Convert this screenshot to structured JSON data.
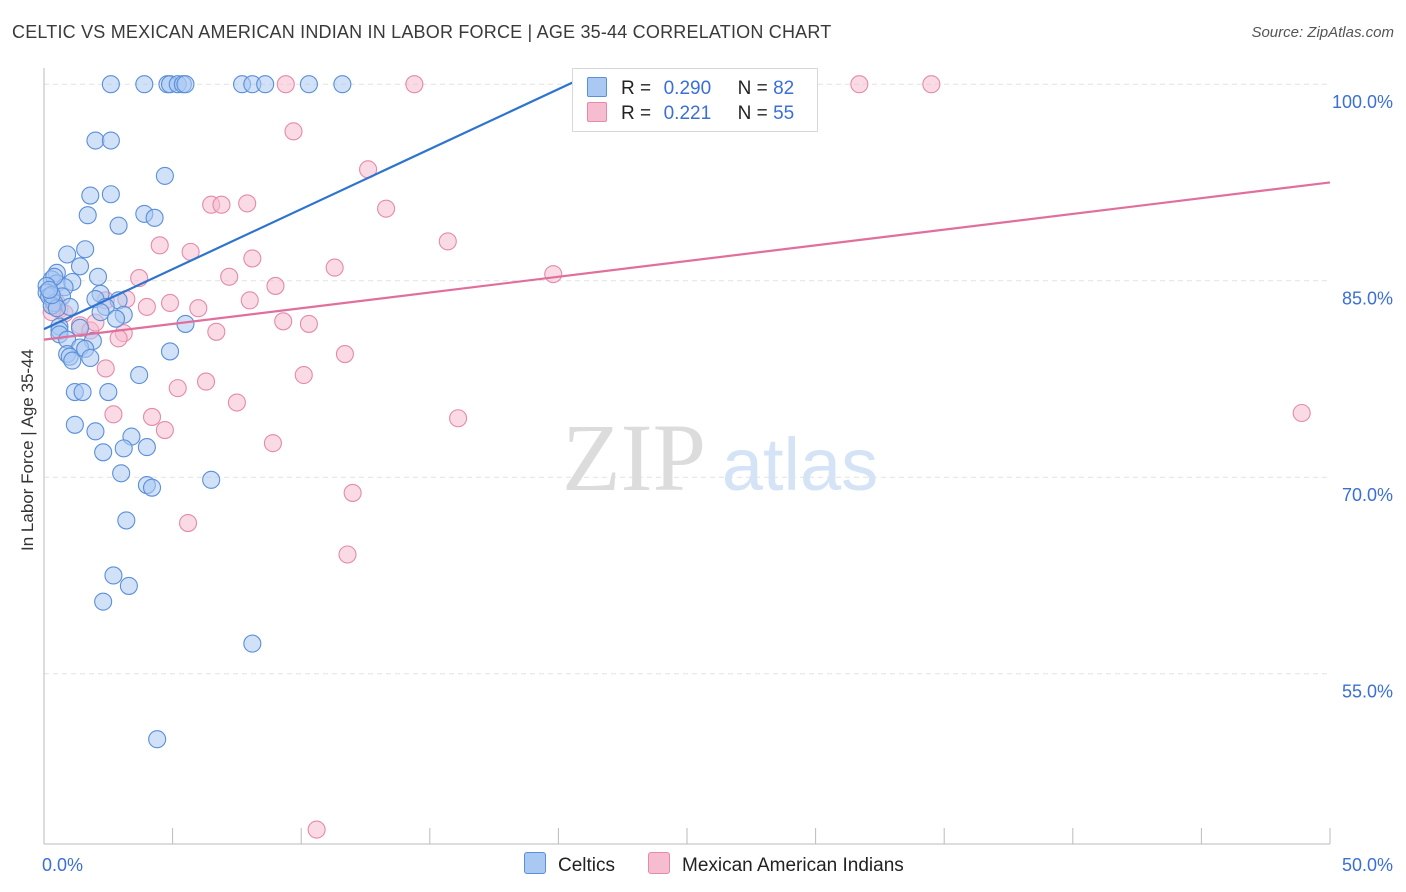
{
  "header": {
    "title": "CELTIC VS MEXICAN AMERICAN INDIAN IN LABOR FORCE | AGE 35-44 CORRELATION CHART",
    "source": "Source: ZipAtlas.com"
  },
  "watermark": {
    "zip": "ZIP",
    "atlas": "atlas"
  },
  "colors": {
    "blue_fill": "#a9c8f2",
    "blue_stroke": "#5b8fd9",
    "blue_line": "#2e74cf",
    "pink_fill": "#f6bcd0",
    "pink_stroke": "#e58aa9",
    "pink_line": "#e0709b",
    "tick_text": "#3a6fd8",
    "grid": "#e2e2e2"
  },
  "legend": {
    "rows": [
      {
        "r_label": "R =",
        "r_value": "0.290",
        "n_label": "N =",
        "n_value": "82"
      },
      {
        "r_label": "R =",
        "r_value": "0.221",
        "n_label": "N =",
        "n_value": "55"
      }
    ]
  },
  "bottom_legend": [
    {
      "label": "Celtics"
    },
    {
      "label": "Mexican American Indians"
    }
  ],
  "chart_data": {
    "type": "scatter",
    "xlabel": "",
    "ylabel": "In Labor Force | Age 35-44",
    "xlim": [
      0,
      50
    ],
    "ylim": [
      42,
      102
    ],
    "x_tick_labels": [
      {
        "value": 0,
        "label": "0.0%"
      },
      {
        "value": 50,
        "label": "50.0%"
      }
    ],
    "y_tick_labels": [
      {
        "value": 100,
        "label": "100.0%"
      },
      {
        "value": 85,
        "label": "85.0%"
      },
      {
        "value": 70,
        "label": "70.0%"
      },
      {
        "value": 55,
        "label": "55.0%"
      }
    ],
    "grid": true,
    "legend_position": "top-center",
    "series": [
      {
        "name": "Celtics",
        "color": "#5b8fd9",
        "r": 0.29,
        "n": 82,
        "trend": {
          "x": [
            0.0,
            21.5
          ],
          "y": [
            81.3,
            101.0
          ]
        },
        "points": [
          [
            2.6,
            100
          ],
          [
            3.9,
            100
          ],
          [
            4.8,
            100
          ],
          [
            4.9,
            100
          ],
          [
            5.2,
            100
          ],
          [
            5.4,
            100
          ],
          [
            5.5,
            100
          ],
          [
            7.7,
            100
          ],
          [
            8.1,
            100
          ],
          [
            8.6,
            100
          ],
          [
            10.3,
            100
          ],
          [
            11.6,
            100
          ],
          [
            2.0,
            95.7
          ],
          [
            2.6,
            95.7
          ],
          [
            4.7,
            93.0
          ],
          [
            1.8,
            91.5
          ],
          [
            2.6,
            91.6
          ],
          [
            1.7,
            90.0
          ],
          [
            3.9,
            90.1
          ],
          [
            4.3,
            89.8
          ],
          [
            2.9,
            89.2
          ],
          [
            0.9,
            87.0
          ],
          [
            1.6,
            87.4
          ],
          [
            0.5,
            85.6
          ],
          [
            2.1,
            85.3
          ],
          [
            0.3,
            85.1
          ],
          [
            0.5,
            84.8
          ],
          [
            1.1,
            84.9
          ],
          [
            0.8,
            84.5
          ],
          [
            1.4,
            86.1
          ],
          [
            0.4,
            85.3
          ],
          [
            2.2,
            84.0
          ],
          [
            0.1,
            84.6
          ],
          [
            0.1,
            84.1
          ],
          [
            0.2,
            83.8
          ],
          [
            0.7,
            83.8
          ],
          [
            2.0,
            83.6
          ],
          [
            0.4,
            83.3
          ],
          [
            2.9,
            83.5
          ],
          [
            0.3,
            83.1
          ],
          [
            1.0,
            83.0
          ],
          [
            0.5,
            82.9
          ],
          [
            2.4,
            83.0
          ],
          [
            3.1,
            82.4
          ],
          [
            2.2,
            82.6
          ],
          [
            2.8,
            82.1
          ],
          [
            0.6,
            81.5
          ],
          [
            0.6,
            81.2
          ],
          [
            1.4,
            81.4
          ],
          [
            0.6,
            80.9
          ],
          [
            0.9,
            80.5
          ],
          [
            1.9,
            80.4
          ],
          [
            1.4,
            79.9
          ],
          [
            1.6,
            79.8
          ],
          [
            0.9,
            79.4
          ],
          [
            1.0,
            79.2
          ],
          [
            1.8,
            79.1
          ],
          [
            1.1,
            78.9
          ],
          [
            5.5,
            81.7
          ],
          [
            4.9,
            79.6
          ],
          [
            3.7,
            77.8
          ],
          [
            1.2,
            76.5
          ],
          [
            1.5,
            76.5
          ],
          [
            2.5,
            76.5
          ],
          [
            1.2,
            74.0
          ],
          [
            2.0,
            73.5
          ],
          [
            3.4,
            73.1
          ],
          [
            4.0,
            72.3
          ],
          [
            3.1,
            72.2
          ],
          [
            2.3,
            71.9
          ],
          [
            3.0,
            70.3
          ],
          [
            6.5,
            69.8
          ],
          [
            4.0,
            69.4
          ],
          [
            4.2,
            69.2
          ],
          [
            3.2,
            66.7
          ],
          [
            2.7,
            62.5
          ],
          [
            3.3,
            61.7
          ],
          [
            2.3,
            60.5
          ],
          [
            8.1,
            57.3
          ],
          [
            4.4,
            50.0
          ],
          [
            0.3,
            83.9
          ],
          [
            0.2,
            84.3
          ]
        ]
      },
      {
        "name": "Mexican American Indians",
        "color": "#e58aa9",
        "r": 0.221,
        "n": 55,
        "trend": {
          "x": [
            0.0,
            50.0
          ],
          "y": [
            80.5,
            92.5
          ]
        },
        "points": [
          [
            9.4,
            100
          ],
          [
            14.4,
            100
          ],
          [
            26.0,
            100
          ],
          [
            31.7,
            100
          ],
          [
            34.5,
            100
          ],
          [
            9.7,
            96.4
          ],
          [
            12.6,
            93.5
          ],
          [
            13.3,
            90.5
          ],
          [
            6.5,
            90.8
          ],
          [
            6.9,
            90.8
          ],
          [
            7.9,
            90.9
          ],
          [
            15.7,
            88.0
          ],
          [
            4.5,
            87.7
          ],
          [
            5.7,
            87.2
          ],
          [
            8.1,
            86.7
          ],
          [
            11.3,
            86.0
          ],
          [
            7.2,
            85.3
          ],
          [
            3.7,
            85.2
          ],
          [
            9.0,
            84.6
          ],
          [
            19.8,
            85.5
          ],
          [
            2.4,
            83.5
          ],
          [
            3.2,
            83.6
          ],
          [
            4.0,
            83.0
          ],
          [
            4.9,
            83.3
          ],
          [
            6.0,
            82.9
          ],
          [
            8.0,
            83.5
          ],
          [
            0.4,
            83.0
          ],
          [
            0.6,
            82.8
          ],
          [
            0.8,
            82.5
          ],
          [
            1.4,
            81.6
          ],
          [
            1.8,
            81.2
          ],
          [
            2.0,
            81.8
          ],
          [
            3.1,
            81.0
          ],
          [
            2.9,
            80.6
          ],
          [
            6.7,
            81.1
          ],
          [
            9.3,
            81.9
          ],
          [
            10.3,
            81.7
          ],
          [
            11.7,
            79.4
          ],
          [
            2.4,
            78.3
          ],
          [
            10.1,
            77.8
          ],
          [
            6.3,
            77.3
          ],
          [
            5.2,
            76.8
          ],
          [
            7.5,
            75.7
          ],
          [
            2.7,
            74.8
          ],
          [
            4.2,
            74.6
          ],
          [
            4.7,
            73.6
          ],
          [
            16.1,
            74.5
          ],
          [
            8.9,
            72.6
          ],
          [
            12.0,
            68.8
          ],
          [
            5.6,
            66.5
          ],
          [
            11.8,
            64.1
          ],
          [
            10.6,
            43.1
          ],
          [
            48.9,
            74.9
          ],
          [
            0.5,
            83.3
          ],
          [
            0.3,
            82.6
          ]
        ]
      }
    ]
  }
}
